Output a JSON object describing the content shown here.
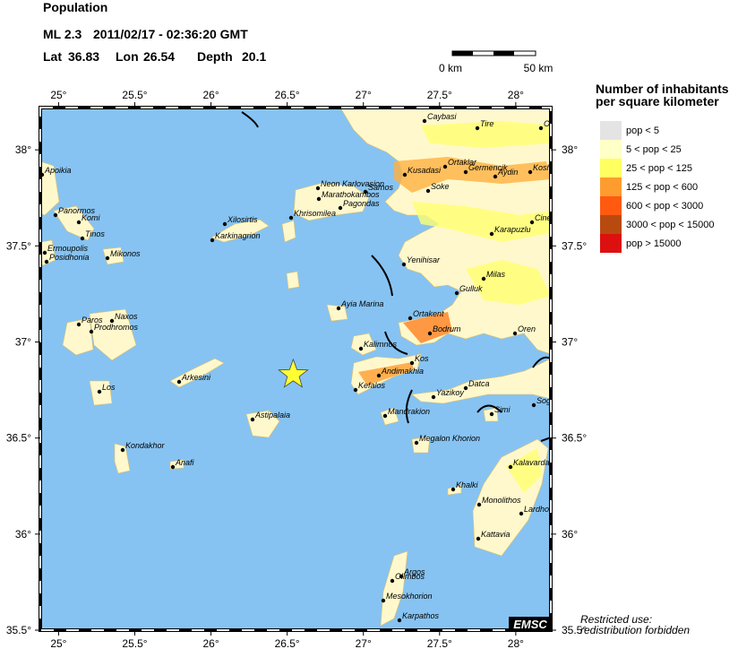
{
  "title": "Population",
  "event": {
    "magnitude": "ML 2.3",
    "datetime": "2011/02/17 - 02:36:20 GMT",
    "lat": {
      "label": "Lat",
      "value": 36.83
    },
    "lon": {
      "label": "Lon",
      "value": 26.54
    },
    "depth": {
      "label": "Depth",
      "value": 20.1
    }
  },
  "scale": {
    "start": "0 km",
    "end": "50 km"
  },
  "map": {
    "xlim": [
      24.88,
      28.23
    ],
    "ylim": [
      35.5,
      38.22
    ],
    "xticks": [
      {
        "value": 25,
        "label": "25°"
      },
      {
        "value": 25.5,
        "label": "25.5°"
      },
      {
        "value": 26,
        "label": "26°"
      },
      {
        "value": 26.5,
        "label": "26.5°"
      },
      {
        "value": 27,
        "label": "27°"
      },
      {
        "value": 27.5,
        "label": "27.5°"
      },
      {
        "value": 28,
        "label": "28°"
      }
    ],
    "yticks": [
      {
        "value": 35.5,
        "label": "35.5°"
      },
      {
        "value": 36,
        "label": "36°"
      },
      {
        "value": 36.5,
        "label": "36.5°"
      },
      {
        "value": 37,
        "label": "37°"
      },
      {
        "value": 37.5,
        "label": "37.5°"
      },
      {
        "value": 38,
        "label": "38°"
      }
    ]
  },
  "legend": {
    "title": [
      "Number of inhabitants",
      "per square kilometer"
    ],
    "entries": [
      {
        "label": "pop < 5",
        "color": "#e4e4e4"
      },
      {
        "label": "5 < pop < 25",
        "color": "#ffffc8"
      },
      {
        "label": "25 < pop < 125",
        "color": "#ffff60"
      },
      {
        "label": "125 < pop < 600",
        "color": "#ff9c30"
      },
      {
        "label": "600 < pop < 3000",
        "color": "#ff5a10"
      },
      {
        "label": "3000 < pop < 15000",
        "color": "#b84a10"
      },
      {
        "label": "pop > 15000",
        "color": "#dd1010"
      }
    ]
  },
  "places": [
    "Caybasi",
    "Tire",
    "Ovake",
    "Kusadasi",
    "Ortaklar",
    "Germencik",
    "Aydin",
    "Kosh",
    "Soke",
    "Neon Karlovasion",
    "Samos",
    "Marathokambos",
    "Pagondas",
    "Khrisomilea",
    "Xilosirtis",
    "Karkinagrion",
    "Apoikia",
    "Panormos",
    "Komi",
    "Tinos",
    "Ermoupolis",
    "Posidhonia",
    "Mikonos",
    "Yenihisar",
    "Karapuzlu",
    "Cine",
    "Milas",
    "Gulluk",
    "Ayia Marina",
    "Ortakent",
    "Bodrum",
    "Oren",
    "Paros",
    "Naxos",
    "Prodhromos",
    "Kalimnos",
    "Kos",
    "Andimakhia",
    "Kefalos",
    "Arkesini",
    "Yazikoy",
    "Datca",
    "Simi",
    "Sog",
    "Los",
    "Mandrakion",
    "Astipalaia",
    "Megalon Khorion",
    "Kondakhor",
    "Anafi",
    "Kalavarda",
    "Khalki",
    "Monolithos",
    "Lardhos",
    "Kattavia",
    "Argos",
    "Olimbos",
    "Mesokhorion",
    "Karpathos"
  ],
  "footer": {
    "badge": "EMSC",
    "note": [
      "Restricted use:",
      "redistribution forbidden"
    ]
  }
}
